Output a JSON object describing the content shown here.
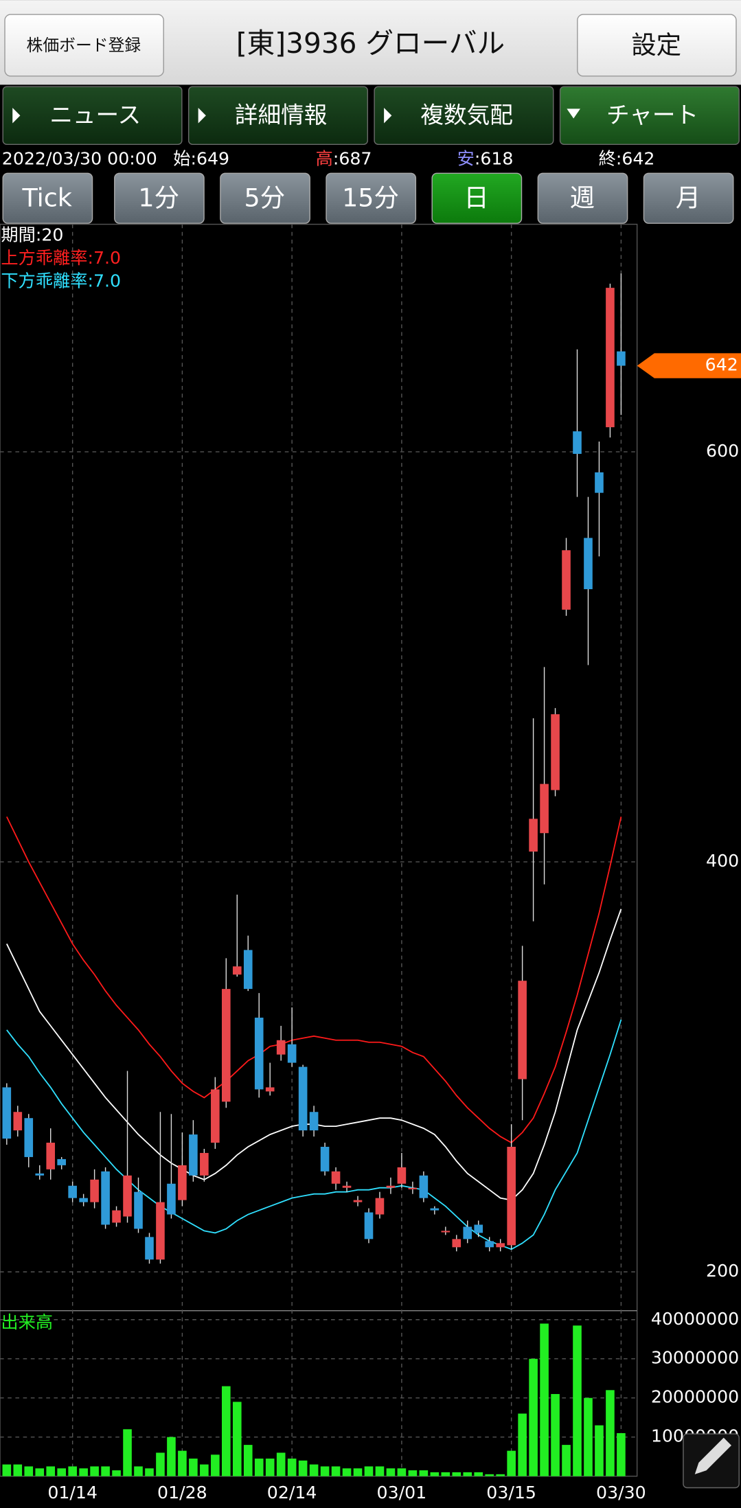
{
  "header": {
    "register_button": "株価ボード登録",
    "title": "[東]3936 グローバル",
    "settings_button": "設定"
  },
  "tabs": [
    "ニュース",
    "詳細情報",
    "複数気配",
    "チャート"
  ],
  "quote": {
    "datetime": "2022/03/30 00:00",
    "separator": ":",
    "items": [
      {
        "label": "始",
        "value": 649,
        "color": "#ffffff"
      },
      {
        "label": "高",
        "value": 687,
        "color": "#ff4040"
      },
      {
        "label": "安",
        "value": 618,
        "color": "#8f8fff"
      },
      {
        "label": "終",
        "value": 642,
        "color": "#ffffff"
      }
    ]
  },
  "intervals": [
    "Tick",
    "1分",
    "5分",
    "15分",
    "日",
    "週",
    "月"
  ],
  "selected_interval": "日",
  "indicator": [
    {
      "text": "期間:20",
      "color": "#ffffff"
    },
    {
      "text": "上方乖離率:7.0",
      "color": "#ff2020"
    },
    {
      "text": "下方乖離率:7.0",
      "color": "#30e0ff"
    }
  ],
  "chart_data": [
    {
      "type": "candlestick",
      "up_color": "#e8474b",
      "down_color": "#2f9ad8",
      "categories": [
        null,
        null,
        null,
        null,
        null,
        null,
        "01/14",
        null,
        null,
        null,
        null,
        null,
        null,
        null,
        null,
        null,
        "01/28",
        null,
        null,
        null,
        null,
        null,
        null,
        null,
        null,
        null,
        "02/14",
        null,
        null,
        null,
        null,
        null,
        null,
        null,
        null,
        null,
        "03/01",
        null,
        null,
        null,
        null,
        null,
        null,
        null,
        null,
        null,
        "03/15",
        null,
        null,
        null,
        null,
        null,
        null,
        null,
        null,
        null,
        "03/30"
      ],
      "open": [
        290,
        269,
        275,
        248,
        250,
        255,
        242,
        236,
        234,
        249,
        224,
        227,
        239,
        217,
        206,
        243,
        235,
        267,
        247,
        263,
        283,
        345,
        357,
        324,
        288,
        306,
        311,
        300,
        278,
        261,
        243,
        241,
        234,
        229,
        228,
        241,
        243,
        241,
        247,
        231,
        220,
        212,
        222,
        223,
        215,
        212,
        213,
        294,
        405,
        414,
        435,
        523,
        610,
        558,
        590,
        612,
        649
      ],
      "high": [
        292,
        281,
        277,
        252,
        270,
        256,
        244,
        238,
        250,
        251,
        232,
        298,
        246,
        219,
        278,
        277,
        268,
        274,
        260,
        295,
        353,
        384,
        364,
        336,
        302,
        320,
        329,
        301,
        281,
        263,
        251,
        244,
        237,
        231,
        239,
        246,
        258,
        244,
        249,
        232,
        222,
        218,
        225,
        225,
        217,
        216,
        272,
        359,
        470,
        495,
        475,
        558,
        650,
        578,
        605,
        682,
        687
      ],
      "low": [
        262,
        266,
        251,
        245,
        245,
        250,
        234,
        232,
        231,
        221,
        222,
        224,
        219,
        204,
        204,
        226,
        232,
        244,
        244,
        260,
        280,
        344,
        337,
        285,
        286,
        303,
        300,
        266,
        266,
        247,
        240,
        239,
        232,
        214,
        226,
        238,
        241,
        238,
        234,
        228,
        218,
        210,
        214,
        217,
        210,
        210,
        211,
        274,
        371,
        389,
        432,
        520,
        578,
        496,
        549,
        607,
        618
      ],
      "close": [
        265,
        278,
        256,
        247,
        263,
        252,
        236,
        234,
        245,
        223,
        230,
        247,
        221,
        206,
        234,
        228,
        252,
        247,
        258,
        289,
        338,
        349,
        338,
        289,
        290,
        313,
        302,
        269,
        269,
        249,
        249,
        242,
        235,
        216,
        236,
        242,
        251,
        241,
        236,
        230,
        220,
        216,
        216,
        219,
        212,
        214,
        261,
        342,
        421,
        438,
        472,
        552,
        599,
        533,
        580,
        680,
        642
      ],
      "bands": [
        {
          "color": "#ff1a1a",
          "values": [
            422,
            411,
            400,
            390,
            380,
            370,
            360,
            352,
            345,
            337,
            330,
            324,
            318,
            311,
            305,
            298,
            292,
            288,
            285,
            289,
            293,
            298,
            303,
            306,
            310,
            311,
            313,
            314,
            315,
            314,
            313,
            313,
            313,
            312,
            312,
            311,
            310,
            307,
            305,
            299,
            293,
            286,
            280,
            275,
            270,
            266,
            263,
            268,
            275,
            287,
            300,
            317,
            335,
            355,
            375,
            398,
            422
          ]
        },
        {
          "color": "#ffffff",
          "values": [
            360,
            349,
            338,
            327,
            320,
            313,
            306,
            299,
            292,
            285,
            279,
            273,
            267,
            262,
            257,
            253,
            250,
            247,
            245,
            248,
            252,
            257,
            261,
            264,
            267,
            269,
            271,
            272,
            272,
            271,
            271,
            272,
            273,
            274,
            275,
            275,
            274,
            272,
            270,
            267,
            261,
            254,
            248,
            244,
            240,
            236,
            235,
            240,
            248,
            262,
            278,
            298,
            318,
            332,
            346,
            362,
            377
          ]
        },
        {
          "color": "#30e0ff",
          "values": [
            318,
            311,
            305,
            297,
            290,
            282,
            275,
            268,
            262,
            256,
            250,
            245,
            240,
            236,
            232,
            229,
            226,
            223,
            220,
            219,
            221,
            225,
            228,
            230,
            232,
            234,
            236,
            237,
            238,
            238,
            239,
            239,
            240,
            240,
            241,
            241,
            242,
            241,
            240,
            236,
            232,
            227,
            222,
            218,
            215,
            213,
            211,
            214,
            218,
            228,
            240,
            249,
            258,
            274,
            290,
            306,
            323
          ]
        }
      ],
      "ylim": [
        182,
        711
      ],
      "yticks": [
        200,
        400,
        600
      ],
      "grid": true,
      "last_price": 642,
      "last_price_color": "#ff6a00"
    },
    {
      "type": "bar",
      "title": "出来高",
      "color": "#22ee22",
      "values": [
        3000000,
        3000000,
        2500000,
        2000000,
        2500000,
        2000000,
        2500000,
        2000000,
        2500000,
        2500000,
        1500000,
        12000000,
        2500000,
        2000000,
        6000000,
        10000000,
        6500000,
        4500000,
        3000000,
        5500000,
        23000000,
        19000000,
        8000000,
        4500000,
        4500000,
        6000000,
        4500000,
        4000000,
        3000000,
        2500000,
        2500000,
        2000000,
        2000000,
        2500000,
        2500000,
        2000000,
        2000000,
        1500000,
        1500000,
        1000000,
        1000000,
        1000000,
        1000000,
        1000000,
        500000,
        500000,
        6500000,
        16000000,
        30000000,
        39000000,
        21000000,
        8000000,
        38500000,
        20000000,
        13000000,
        22000000,
        11000000
      ],
      "ylim": [
        0,
        42300000
      ],
      "yticks": [
        10000000,
        20000000,
        30000000,
        40000000
      ],
      "grid": true
    }
  ]
}
